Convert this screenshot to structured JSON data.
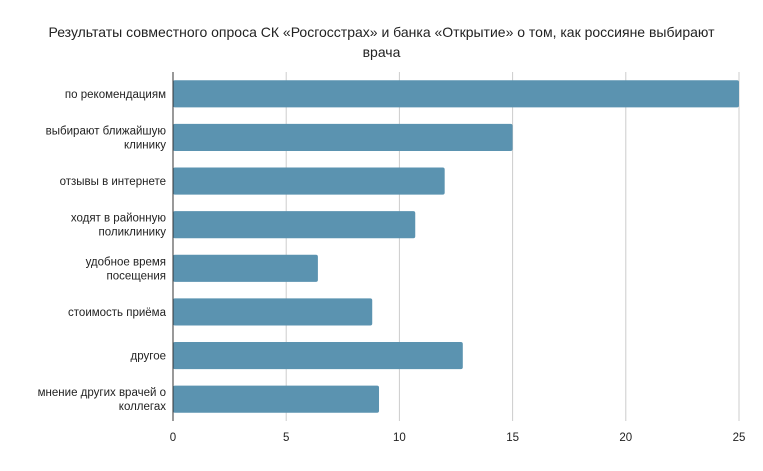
{
  "chart_data": {
    "type": "bar",
    "orientation": "horizontal",
    "title": "Результаты совместного опроса СК «Росгосстрах» и банка «Открытие» о том, как россияне выбирают врача",
    "categories": [
      [
        "по рекомендациям"
      ],
      [
        "выбирают ближайшую",
        "клинику"
      ],
      [
        "отзывы в интернете"
      ],
      [
        "ходят в районную",
        "поликлинику"
      ],
      [
        "удобное время",
        "посещения"
      ],
      [
        "стоимость приёма"
      ],
      [
        "другое"
      ],
      [
        "мнение других врачей о",
        "коллегах"
      ]
    ],
    "values": [
      25,
      15,
      12,
      10.7,
      6.4,
      8.8,
      12.8,
      9.1
    ],
    "xlim": [
      0,
      25
    ],
    "xticks": [
      "0",
      "5",
      "10",
      "15",
      "20",
      "25"
    ],
    "grid": true,
    "colors": {
      "bar": "#5b93b0",
      "grid": "#cccccc",
      "axis": "#333333"
    }
  }
}
